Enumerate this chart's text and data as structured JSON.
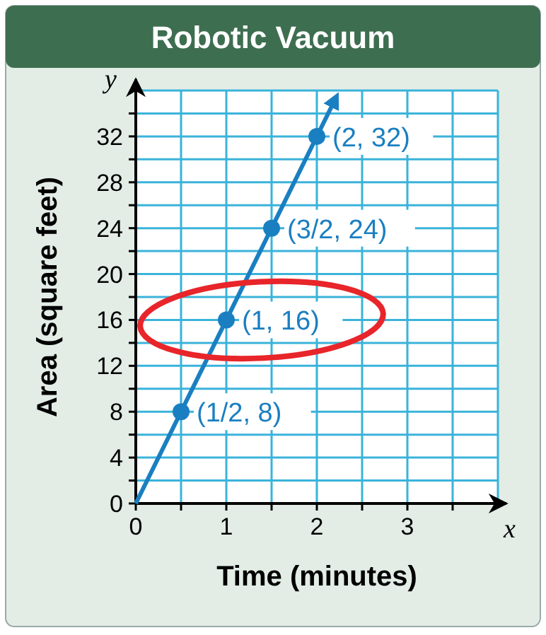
{
  "chart_data": {
    "type": "line",
    "title": "Robotic Vacuum",
    "xlabel": "Time (minutes)",
    "ylabel": "Area (square feet)",
    "xlim": [
      0,
      4
    ],
    "ylim": [
      0,
      36
    ],
    "xticks": [
      0,
      {
        "value": 0.5,
        "label": null
      },
      1,
      {
        "value": 1.5,
        "label": null
      },
      2,
      {
        "value": 2.5,
        "label": null
      },
      3,
      {
        "value": 3.5,
        "label": null
      }
    ],
    "yticks": [
      0,
      {
        "value": 2,
        "label": null
      },
      4,
      {
        "value": 6,
        "label": null
      },
      8,
      {
        "value": 10,
        "label": null
      },
      12,
      {
        "value": 14,
        "label": null
      },
      16,
      {
        "value": 18,
        "label": null
      },
      20,
      {
        "value": 22,
        "label": null
      },
      24,
      {
        "value": 26,
        "label": null
      },
      28,
      {
        "value": 30,
        "label": null
      },
      32,
      {
        "value": 34,
        "label": null
      }
    ],
    "grid": true,
    "line_style": "solid",
    "annotations": [
      "x",
      "y"
    ],
    "series": [
      {
        "color": "#1a7fc1",
        "marker": "none",
        "x": [
          0,
          2.2
        ],
        "values": [
          0,
          35.2
        ]
      },
      {
        "type": "scatter",
        "color": "#1a7fc1",
        "marker": "circle",
        "x": [
          0.5,
          1,
          1.5,
          2
        ],
        "values": [
          8,
          16,
          24,
          32
        ],
        "value_labels": [
          "(1/2, 8)",
          "(1, 16)",
          "(3/2, 24)",
          "(2, 32)"
        ]
      }
    ]
  }
}
